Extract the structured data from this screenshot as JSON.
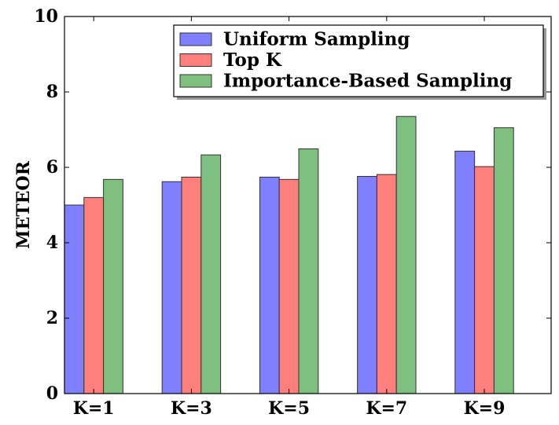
{
  "chart_data": {
    "type": "bar",
    "title": "",
    "xlabel": "",
    "ylabel": "METEOR",
    "ylim": [
      0,
      10
    ],
    "yticks": [
      0,
      2,
      4,
      6,
      8,
      10
    ],
    "categories": [
      "K=1",
      "K=3",
      "K=5",
      "K=7",
      "K=9"
    ],
    "series": [
      {
        "name": "Uniform Sampling",
        "color": "#7f7fff",
        "values": [
          5.0,
          5.62,
          5.74,
          5.76,
          6.43
        ]
      },
      {
        "name": "Top K",
        "color": "#ff7f7f",
        "values": [
          5.2,
          5.74,
          5.68,
          5.81,
          6.02
        ]
      },
      {
        "name": "Importance-Based Sampling",
        "color": "#7fbf7f",
        "values": [
          5.68,
          6.33,
          6.49,
          7.35,
          7.05
        ]
      }
    ],
    "legend_position": "top-right",
    "grid": false
  }
}
